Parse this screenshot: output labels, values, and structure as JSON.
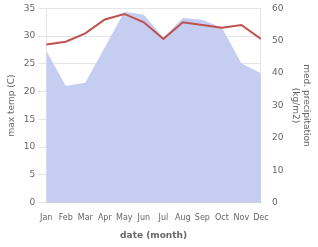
{
  "chart_data": {
    "type": "line",
    "categories": [
      "Jan",
      "Feb",
      "Mar",
      "Apr",
      "May",
      "Jun",
      "Jul",
      "Aug",
      "Sep",
      "Oct",
      "Nov",
      "Dec"
    ],
    "series": [
      {
        "type": "line",
        "color": "#c0504d",
        "values": [
          28.5,
          29.0,
          30.5,
          33.0,
          34.0,
          32.5,
          29.5,
          32.5,
          32.0,
          31.5,
          32.0,
          29.5
        ]
      },
      {
        "type": "area",
        "color": "#c5cef0",
        "axis": "y2",
        "values": [
          47.0,
          36.0,
          37.0,
          48.0,
          59.0,
          58.0,
          51.0,
          57.0,
          56.5,
          54.0,
          43.0,
          40.0
        ]
      }
    ],
    "xlabel": "date (month)",
    "ylabel": "max temp (C)",
    "y2label": "med. precipitation\n(kg/m2)",
    "ylim": [
      0,
      35
    ],
    "yticks": [
      0,
      5,
      10,
      15,
      20,
      25,
      30,
      35
    ],
    "y2lim": [
      0,
      60
    ],
    "y2ticks": [
      0,
      10,
      20,
      30,
      40,
      50,
      60
    ],
    "grid": true
  }
}
